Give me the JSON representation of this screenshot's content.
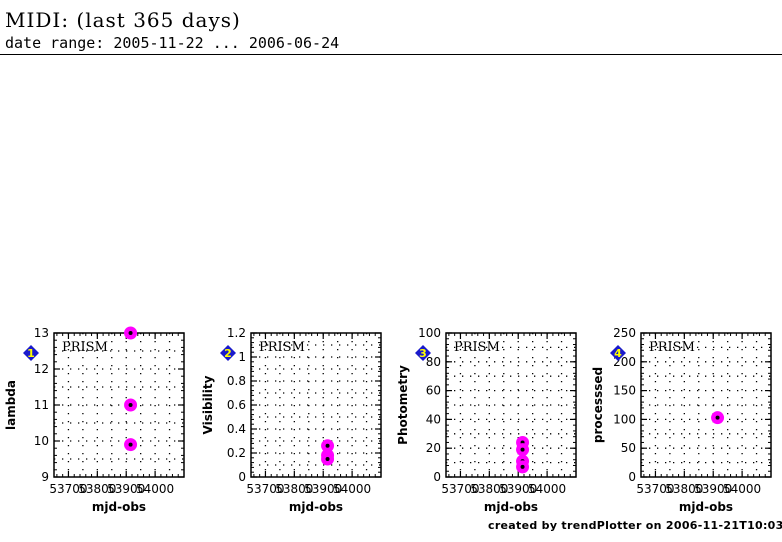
{
  "header": {
    "title": "MIDI: (last 365 days)",
    "subtitle": "date range: 2005-11-22 ... 2006-06-24"
  },
  "footer": {
    "credit": "created by trendPlotter on 2006-11-21T10:03:05"
  },
  "colors": {
    "marker_fill": "#ff00ff",
    "marker_center": "#000000",
    "badge": "#1a1acc",
    "badge_text": "#ffff00"
  },
  "chart_data": [
    {
      "type": "scatter",
      "panel_number": "1",
      "annotation": "PRISM",
      "xlabel": "mjd-obs",
      "ylabel": "lambda",
      "xlim": [
        53650,
        54100
      ],
      "ylim": [
        9,
        13
      ],
      "xticks": [
        "53700",
        "53800",
        "53900",
        "54000"
      ],
      "yticks": [
        "9",
        "10",
        "11",
        "12",
        "13"
      ],
      "grid": true,
      "series": [
        {
          "x": [
            53915,
            53915,
            53915
          ],
          "y": [
            13.0,
            11.0,
            9.9
          ]
        }
      ]
    },
    {
      "type": "scatter",
      "panel_number": "2",
      "annotation": "PRISM",
      "xlabel": "mjd-obs",
      "ylabel": "Visibility",
      "xlim": [
        53650,
        54100
      ],
      "ylim": [
        0,
        1.2
      ],
      "xticks": [
        "53700",
        "53800",
        "53900",
        "54000"
      ],
      "yticks": [
        "0",
        "0.2",
        "0.4",
        "0.6",
        "0.8",
        "1",
        "1.2"
      ],
      "grid": true,
      "series": [
        {
          "x": [
            53915,
            53915,
            53915
          ],
          "y": [
            0.26,
            0.18,
            0.15
          ]
        }
      ]
    },
    {
      "type": "scatter",
      "panel_number": "3",
      "annotation": "PRISM",
      "xlabel": "mjd-obs",
      "ylabel": "Photometry",
      "xlim": [
        53650,
        54100
      ],
      "ylim": [
        0,
        100
      ],
      "xticks": [
        "53700",
        "53800",
        "53900",
        "54000"
      ],
      "yticks": [
        "0",
        "20",
        "40",
        "60",
        "80",
        "100"
      ],
      "grid": true,
      "series": [
        {
          "x": [
            53915,
            53915,
            53915,
            53915
          ],
          "y": [
            24,
            19,
            11,
            7
          ]
        }
      ]
    },
    {
      "type": "scatter",
      "panel_number": "4",
      "annotation": "PRISM",
      "xlabel": "mjd-obs",
      "ylabel": "processsed",
      "xlim": [
        53650,
        54100
      ],
      "ylim": [
        0,
        250
      ],
      "xticks": [
        "53700",
        "53800",
        "53900",
        "54000"
      ],
      "yticks": [
        "0",
        "50",
        "100",
        "150",
        "200",
        "250"
      ],
      "grid": true,
      "series": [
        {
          "x": [
            53915
          ],
          "y": [
            103
          ]
        }
      ]
    }
  ]
}
